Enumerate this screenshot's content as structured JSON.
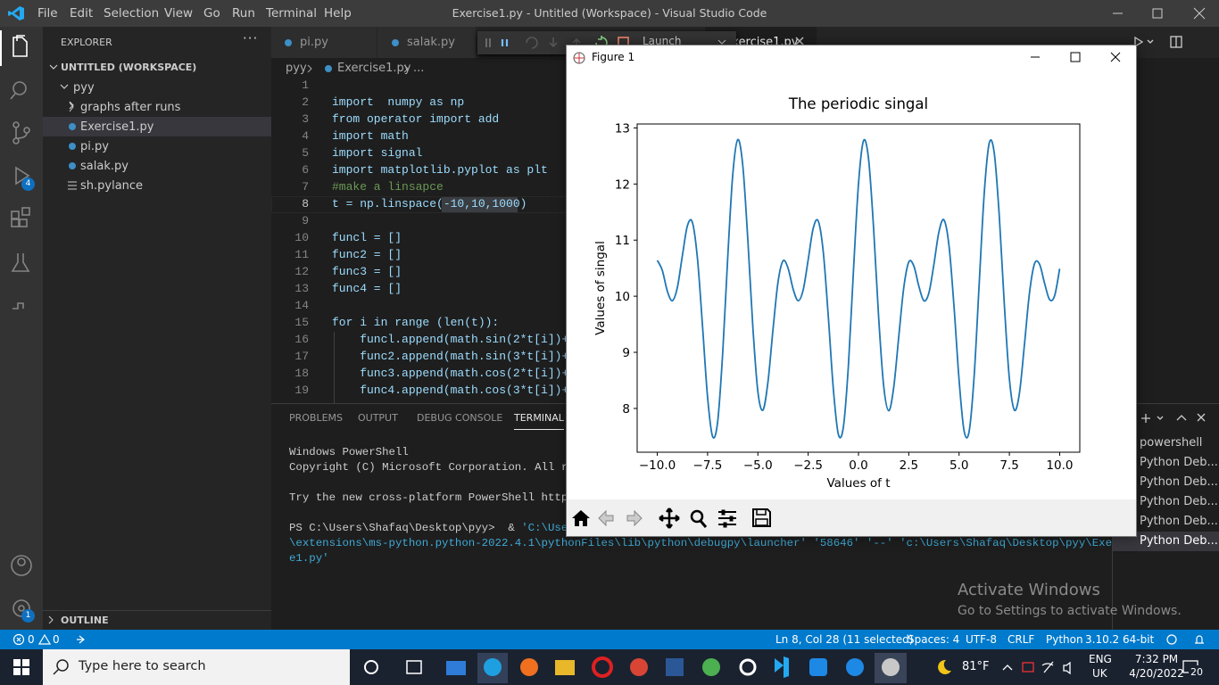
{
  "window": {
    "title": "Exercise1.py - Untitled (Workspace) - Visual Studio Code",
    "menu": [
      "File",
      "Edit",
      "Selection",
      "View",
      "Go",
      "Run",
      "Terminal",
      "Help"
    ]
  },
  "activity_badges": [
    "4",
    "1"
  ],
  "sidebar": {
    "header": "EXPLORER",
    "workspace": "UNTITLED (WORKSPACE)",
    "folder": "pyy",
    "items": [
      "graphs after runs",
      "Exercise1.py",
      "pi.py",
      "salak.py",
      "sh.pylance"
    ],
    "outline": "OUTLINE"
  },
  "tabs": [
    "pi.py",
    "salak.py",
    "Exercise1.py"
  ],
  "debug_toolbar": {
    "config": "Launch"
  },
  "breadcrumb": [
    "pyy",
    "Exercise1.py",
    "..."
  ],
  "code": {
    "line_numbers": [
      1,
      2,
      3,
      4,
      5,
      6,
      7,
      8,
      9,
      10,
      11,
      12,
      13,
      14,
      15,
      16,
      17,
      18,
      19
    ],
    "lines": [
      null,
      "import  numpy as np",
      "from operator import add",
      "import math",
      "import signal",
      "import matplotlib.pyplot as plt",
      "#make a linsapce",
      "t = np.linspace(-10,10,1000)",
      null,
      "funcl = []",
      "func2 = []",
      "func3 = []",
      "func4 = []",
      null,
      "for i in range (len(t)):",
      "    funcl.append(math.sin(2*t[i])+",
      "    func2.append(math.sin(3*t[i])+",
      "    func3.append(math.cos(2*t[i])+",
      "    func4.append(math.cos(3*t[i])+"
    ]
  },
  "panel": {
    "tabs": [
      "PROBLEMS",
      "OUTPUT",
      "DEBUG CONSOLE",
      "TERMINAL"
    ],
    "terminal": [
      "Windows PowerShell",
      "Copyright (C) Microsoft Corporation. All rig",
      null,
      "Try the new cross-platform PowerShell https:",
      null,
      [
        "PS C:\\Users\\Shafaq\\Desktop\\pyy>  & ",
        "'C:\\Users"
      ],
      "\\extensions\\ms-python.python-2022.4.1\\pythonFiles\\lib\\python\\debugpy\\launcher' '58646' '--' 'c:\\Users\\Shafaq\\Desktop\\pyy\\Exercis",
      "e1.py'"
    ],
    "sessions": [
      "powershell",
      "Python Deb...",
      "Python Deb...",
      "Python Deb...",
      "Python Deb...",
      "Python Deb..."
    ]
  },
  "status_bar": {
    "errors": "0",
    "warnings": "0",
    "right": [
      "Ln 8, Col 28 (11 selected)",
      "Spaces: 4",
      "UTF-8",
      "CRLF",
      "Python",
      "3.10.2 64-bit"
    ]
  },
  "watermark": {
    "title": "Activate Windows",
    "text": "Go to Settings to activate Windows."
  },
  "taskbar": {
    "search": "Type here to search",
    "weather": "81°F",
    "language": [
      "ENG",
      "UK"
    ],
    "time": "7:32 PM",
    "date": "4/20/2022",
    "notifications": "20"
  },
  "figure_window": {
    "title": "Figure 1"
  },
  "chart_data": {
    "type": "line",
    "title": "The periodic singal",
    "x_label": "Values of t",
    "y_label": "Values of singal",
    "color": "#1f77b4",
    "grid": false,
    "x": [
      -10,
      -9.75,
      -9.5,
      -9.25,
      -9,
      -8.75,
      -8.5,
      -8.25,
      -8,
      -7.75,
      -7.5,
      -7.25,
      -7,
      -6.75,
      -6.5,
      -6.25,
      -6,
      -5.75,
      -5.5,
      -5.25,
      -5,
      -4.75,
      -4.5,
      -4.25,
      -4,
      -3.75,
      -3.5,
      -3.25,
      -3,
      -2.75,
      -2.5,
      -2.25,
      -2,
      -1.75,
      -1.5,
      -1.25,
      -1,
      -0.75,
      -0.5,
      -0.25,
      0,
      0.25,
      0.5,
      0.75,
      1,
      1.25,
      1.5,
      1.75,
      2,
      2.25,
      2.5,
      2.75,
      3,
      3.25,
      3.5,
      3.75,
      4,
      4.25,
      4.5,
      4.75,
      5,
      5.25,
      5.5,
      5.75,
      6,
      6.25,
      6.5,
      6.75,
      7,
      7.25,
      7.5,
      7.75,
      8,
      8.25,
      8.5,
      8.75,
      9,
      9.25,
      9.5,
      9.75,
      10
    ],
    "values": [
      10.64,
      10.46,
      10.09,
      9.92,
      10.16,
      10.73,
      11.26,
      11.31,
      10.66,
      9.46,
      8.2,
      7.5,
      7.76,
      8.98,
      10.68,
      12.16,
      12.79,
      12.33,
      11.01,
      9.45,
      8.3,
      7.97,
      8.47,
      9.4,
      10.25,
      10.63,
      10.5,
      10.13,
      9.92,
      10.11,
      10.65,
      11.21,
      11.34,
      10.79,
      9.64,
      8.35,
      7.54,
      7.67,
      8.77,
      10.45,
      12,
      12.77,
      12.45,
      11.22,
      9.64,
      8.41,
      7.96,
      8.37,
      9.27,
      10.15,
      10.61,
      10.54,
      10.18,
      9.92,
      10.06,
      10.57,
      11.15,
      11.36,
      10.9,
      9.81,
      8.51,
      7.6,
      7.59,
      8.58,
      10.22,
      11.83,
      12.73,
      12.55,
      11.42,
      9.85,
      8.53,
      7.97,
      8.27,
      9.14,
      10.06,
      10.58,
      10.57,
      10.23,
      9.94,
      10.01,
      10.49
    ],
    "xlim": [
      -11,
      11
    ],
    "ylim": [
      7.22,
      13.07
    ],
    "xticks": [
      {
        "value": -10,
        "label": "−10.0"
      },
      {
        "value": -7.5,
        "label": "−7.5"
      },
      {
        "value": -5,
        "label": "−5.0"
      },
      {
        "value": -2.5,
        "label": "−2.5"
      },
      {
        "value": 0,
        "label": "0.0"
      },
      2.5,
      {
        "value": 5,
        "label": "5.0"
      },
      7.5,
      {
        "value": 10,
        "label": "10.0"
      }
    ],
    "yticks": [
      8,
      9,
      10,
      11,
      12,
      13
    ]
  }
}
